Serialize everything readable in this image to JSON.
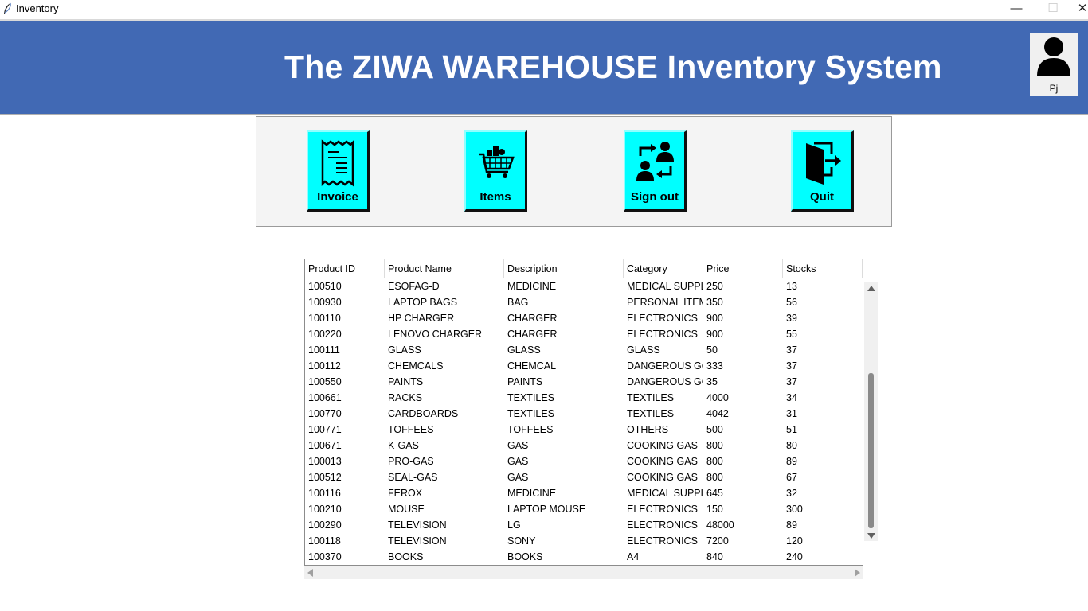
{
  "window": {
    "title": "Inventory",
    "app_icon": "feather-icon",
    "controls": [
      "minimize",
      "maximize",
      "close"
    ],
    "min_glyph": "—",
    "max_glyph": "☐",
    "close_glyph": "✕"
  },
  "header": {
    "title": "The ZIWA WAREHOUSE Inventory System",
    "user_name": "Pj",
    "bg_color": "#4169b4"
  },
  "toolbar": {
    "button_color": "#00ffff",
    "buttons": [
      {
        "label": "Invoice",
        "icon": "invoice-icon"
      },
      {
        "label": "Items",
        "icon": "shopping-cart-icon"
      },
      {
        "label": "Sign out",
        "icon": "switch-user-icon"
      },
      {
        "label": "Quit",
        "icon": "exit-door-icon"
      }
    ]
  },
  "table": {
    "columns": [
      "Product ID",
      "Product Name",
      "Description",
      "Category",
      "Price",
      "Stocks"
    ],
    "rows": [
      [
        "100510",
        "ESOFAG-D",
        "MEDICINE",
        "MEDICAL SUPPLII",
        "250",
        "13"
      ],
      [
        "100930",
        "LAPTOP BAGS",
        "BAG",
        "PERSONAL ITEMS",
        "350",
        "56"
      ],
      [
        "100110",
        "HP CHARGER",
        "CHARGER",
        "ELECTRONICS",
        "900",
        "39"
      ],
      [
        "100220",
        "LENOVO CHARGER",
        "CHARGER",
        "ELECTRONICS",
        "900",
        "55"
      ],
      [
        "100111",
        "GLASS",
        "GLASS",
        "GLASS",
        "50",
        "37"
      ],
      [
        "100112",
        "CHEMCALS",
        "CHEMCAL",
        "DANGEROUS GOO",
        "333",
        "37"
      ],
      [
        "100550",
        "PAINTS",
        "PAINTS",
        "DANGEROUS GOO",
        "35",
        "37"
      ],
      [
        "100661",
        "RACKS",
        "TEXTILES",
        "TEXTILES",
        "4000",
        "34"
      ],
      [
        "100770",
        "CARDBOARDS",
        "TEXTILES",
        "TEXTILES",
        "4042",
        "31"
      ],
      [
        "100771",
        "TOFFEES",
        "TOFFEES",
        "OTHERS",
        "500",
        "51"
      ],
      [
        "100671",
        "K-GAS",
        "GAS",
        "COOKING GAS",
        "800",
        "80"
      ],
      [
        "100013",
        "PRO-GAS",
        "GAS",
        "COOKING GAS",
        "800",
        "89"
      ],
      [
        "100512",
        "SEAL-GAS",
        "GAS",
        "COOKING GAS",
        "800",
        "67"
      ],
      [
        "100116",
        "FEROX",
        "MEDICINE",
        "MEDICAL SUPPLII",
        "645",
        "32"
      ],
      [
        "100210",
        "MOUSE",
        "LAPTOP MOUSE",
        "ELECTRONICS",
        "150",
        "300"
      ],
      [
        "100290",
        "TELEVISION",
        "LG",
        "ELECTRONICS",
        "48000",
        "89"
      ],
      [
        "100118",
        "TELEVISION",
        "SONY",
        "ELECTRONICS",
        "7200",
        "120"
      ],
      [
        "100370",
        "BOOKS",
        "BOOKS",
        "A4",
        "840",
        "240"
      ]
    ]
  }
}
